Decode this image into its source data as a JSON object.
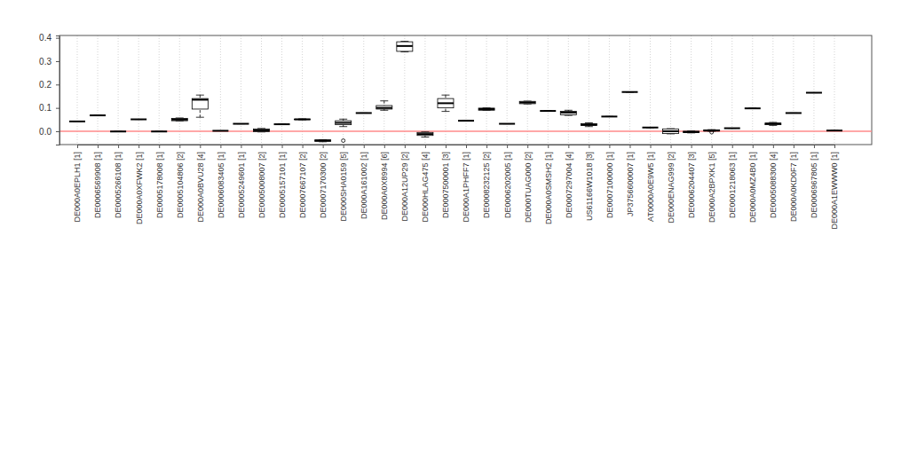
{
  "chart_data": {
    "type": "boxplot",
    "categories": [
      "DE000A0EPLH1 [1]",
      "DE0006569908 [1]",
      "DE0005266108 [1]",
      "DE000A0XFWK2 [1]",
      "DE0005178008 [1]",
      "DE0005104806 [2]",
      "DE000A0BVU28 [4]",
      "DE0006083405 [1]",
      "DE0005249601 [1]",
      "DE0005008007 [2]",
      "DE0005157101 [1]",
      "DE0007667107 [2]",
      "DE0007170300 [2]",
      "DE000SHA0159 [5]",
      "DE000A161002 [1]",
      "DE000A0X8994 [6]",
      "DE000A12UP29 [2]",
      "DE000HLAG475 [4]",
      "DE0007500001 [3]",
      "DE000A1PHFF7 [1]",
      "DE0008232125 [2]",
      "DE0006202005 [1]",
      "DE000TUAG000 [2]",
      "DE000A0SMSH2 [1]",
      "DE0007297004 [4]",
      "US61166W1018 [3]",
      "DE0007100000 [1]",
      "JP3756600007 [1]",
      "AT0000A0E9W5 [1]",
      "DE000ENAG999 [2]",
      "DE0006204407 [3]",
      "DE000A2BPXK1 [5]",
      "DE0001218063 [1]",
      "DE000A0MZ4B0 [1]",
      "DE0005088300 [4]",
      "DE000A0KD0F7 [1]",
      "DE0006967805 [1]",
      "DE000A1EWWW0 [1]"
    ],
    "boxes": [
      {
        "min": 0.042,
        "q1": 0.042,
        "median": 0.042,
        "q3": 0.042,
        "max": 0.042,
        "outliers": []
      },
      {
        "min": 0.068,
        "q1": 0.068,
        "median": 0.068,
        "q3": 0.068,
        "max": 0.068,
        "outliers": []
      },
      {
        "min": -0.001,
        "q1": -0.001,
        "median": -0.001,
        "q3": -0.001,
        "max": -0.001,
        "outliers": []
      },
      {
        "min": 0.051,
        "q1": 0.051,
        "median": 0.051,
        "q3": 0.051,
        "max": 0.051,
        "outliers": []
      },
      {
        "min": -0.001,
        "q1": -0.001,
        "median": -0.001,
        "q3": -0.001,
        "max": -0.001,
        "outliers": []
      },
      {
        "min": 0.044,
        "q1": 0.045,
        "median": 0.05,
        "q3": 0.055,
        "max": 0.057,
        "outliers": []
      },
      {
        "min": 0.06,
        "q1": 0.095,
        "median": 0.135,
        "q3": 0.14,
        "max": 0.155,
        "outliers": []
      },
      {
        "min": 0.002,
        "q1": 0.002,
        "median": 0.002,
        "q3": 0.002,
        "max": 0.002,
        "outliers": []
      },
      {
        "min": 0.032,
        "q1": 0.032,
        "median": 0.032,
        "q3": 0.032,
        "max": 0.032,
        "outliers": []
      },
      {
        "min": -0.003,
        "q1": -0.002,
        "median": 0.004,
        "q3": 0.01,
        "max": 0.012,
        "outliers": []
      },
      {
        "min": 0.03,
        "q1": 0.03,
        "median": 0.03,
        "q3": 0.03,
        "max": 0.03,
        "outliers": []
      },
      {
        "min": 0.049,
        "q1": 0.05,
        "median": 0.051,
        "q3": 0.052,
        "max": 0.053,
        "outliers": []
      },
      {
        "min": -0.045,
        "q1": -0.043,
        "median": -0.04,
        "q3": -0.037,
        "max": -0.036,
        "outliers": []
      },
      {
        "min": 0.02,
        "q1": 0.028,
        "median": 0.036,
        "q3": 0.045,
        "max": 0.052,
        "outliers": [
          -0.04
        ]
      },
      {
        "min": 0.078,
        "q1": 0.078,
        "median": 0.078,
        "q3": 0.078,
        "max": 0.078,
        "outliers": []
      },
      {
        "min": 0.09,
        "q1": 0.095,
        "median": 0.1,
        "q3": 0.11,
        "max": 0.13,
        "outliers": []
      },
      {
        "min": 0.34,
        "q1": 0.342,
        "median": 0.365,
        "q3": 0.383,
        "max": 0.385,
        "outliers": []
      },
      {
        "min": -0.025,
        "q1": -0.018,
        "median": -0.012,
        "q3": -0.005,
        "max": -0.003,
        "outliers": []
      },
      {
        "min": 0.085,
        "q1": 0.1,
        "median": 0.12,
        "q3": 0.14,
        "max": 0.155,
        "outliers": []
      },
      {
        "min": 0.045,
        "q1": 0.045,
        "median": 0.045,
        "q3": 0.045,
        "max": 0.045,
        "outliers": []
      },
      {
        "min": 0.089,
        "q1": 0.09,
        "median": 0.095,
        "q3": 0.099,
        "max": 0.1,
        "outliers": []
      },
      {
        "min": 0.032,
        "q1": 0.032,
        "median": 0.032,
        "q3": 0.032,
        "max": 0.032,
        "outliers": []
      },
      {
        "min": 0.117,
        "q1": 0.118,
        "median": 0.123,
        "q3": 0.128,
        "max": 0.129,
        "outliers": []
      },
      {
        "min": 0.087,
        "q1": 0.087,
        "median": 0.087,
        "q3": 0.087,
        "max": 0.087,
        "outliers": []
      },
      {
        "min": 0.068,
        "q1": 0.07,
        "median": 0.08,
        "q3": 0.085,
        "max": 0.09,
        "outliers": []
      },
      {
        "min": 0.02,
        "q1": 0.025,
        "median": 0.028,
        "q3": 0.032,
        "max": 0.036,
        "outliers": []
      },
      {
        "min": 0.063,
        "q1": 0.063,
        "median": 0.063,
        "q3": 0.063,
        "max": 0.063,
        "outliers": []
      },
      {
        "min": 0.168,
        "q1": 0.168,
        "median": 0.168,
        "q3": 0.168,
        "max": 0.168,
        "outliers": []
      },
      {
        "min": 0.016,
        "q1": 0.016,
        "median": 0.016,
        "q3": 0.016,
        "max": 0.016,
        "outliers": []
      },
      {
        "min": -0.011,
        "q1": -0.01,
        "median": 0.0,
        "q3": 0.01,
        "max": 0.011,
        "outliers": []
      },
      {
        "min": -0.007,
        "q1": -0.006,
        "median": -0.003,
        "q3": 0.0,
        "max": 0.001,
        "outliers": []
      },
      {
        "min": 0.0,
        "q1": 0.001,
        "median": 0.003,
        "q3": 0.006,
        "max": 0.007,
        "outliers": [
          -0.004
        ]
      },
      {
        "min": 0.013,
        "q1": 0.013,
        "median": 0.013,
        "q3": 0.013,
        "max": 0.013,
        "outliers": []
      },
      {
        "min": 0.098,
        "q1": 0.098,
        "median": 0.098,
        "q3": 0.098,
        "max": 0.098,
        "outliers": []
      },
      {
        "min": 0.025,
        "q1": 0.028,
        "median": 0.032,
        "q3": 0.035,
        "max": 0.038,
        "outliers": []
      },
      {
        "min": 0.078,
        "q1": 0.078,
        "median": 0.078,
        "q3": 0.078,
        "max": 0.078,
        "outliers": []
      },
      {
        "min": 0.165,
        "q1": 0.165,
        "median": 0.165,
        "q3": 0.165,
        "max": 0.165,
        "outliers": []
      },
      {
        "min": 0.003,
        "q1": 0.003,
        "median": 0.003,
        "q3": 0.003,
        "max": 0.003,
        "outliers": []
      }
    ],
    "color": "#000000",
    "ylim": [
      -0.057,
      0.41
    ],
    "yticks": [
      {
        "value": 0,
        "label": "0.0"
      },
      0.1,
      0.2,
      0.3,
      0.4
    ],
    "grid": true,
    "reference_line": {
      "value": 0,
      "color": "#ff8a8a"
    }
  }
}
